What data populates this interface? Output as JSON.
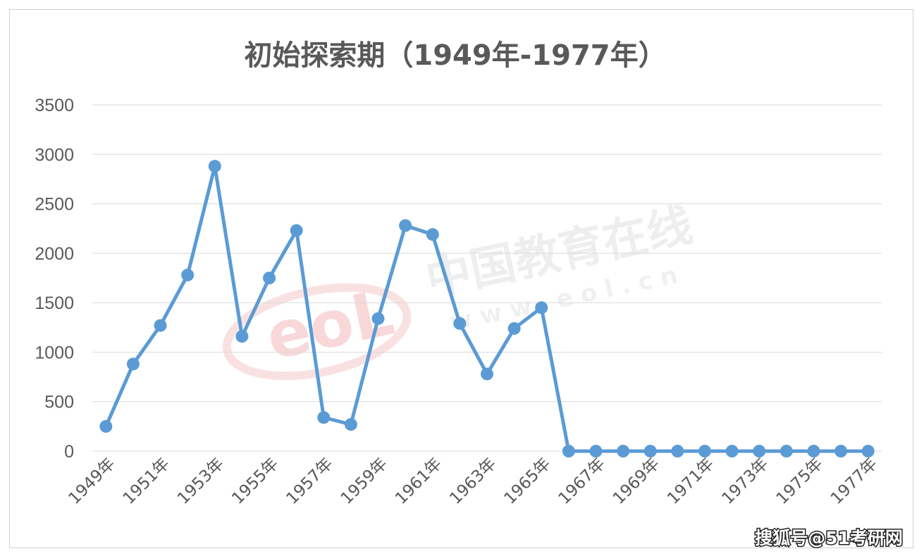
{
  "chart_data": {
    "type": "line",
    "title": "初始探索期（1949年-1977年）",
    "xlabel": "",
    "ylabel": "",
    "ylim": [
      0,
      3500
    ],
    "y_ticks": [
      0,
      500,
      1000,
      1500,
      2000,
      2500,
      3000,
      3500
    ],
    "grid": true,
    "legend": "none",
    "categories": [
      "1949年",
      "1950年",
      "1951年",
      "1952年",
      "1953年",
      "1954年",
      "1955年",
      "1956年",
      "1957年",
      "1958年",
      "1959年",
      "1960年",
      "1961年",
      "1962年",
      "1963年",
      "1964年",
      "1965年",
      "1966年",
      "1967年",
      "1968年",
      "1969年",
      "1970年",
      "1971年",
      "1972年",
      "1973年",
      "1974年",
      "1975年",
      "1976年",
      "1977年"
    ],
    "shown_x_labels": [
      "1949年",
      "1951年",
      "1953年",
      "1955年",
      "1957年",
      "1959年",
      "1961年",
      "1963年",
      "1965年",
      "1967年",
      "1969年",
      "1971年",
      "1973年",
      "1975年",
      "1977年"
    ],
    "series": [
      {
        "values": [
          250,
          880,
          1270,
          1780,
          2880,
          1160,
          1750,
          2230,
          340,
          270,
          1340,
          2280,
          2190,
          1290,
          780,
          1240,
          1450,
          0,
          0,
          0,
          0,
          0,
          0,
          0,
          0,
          0,
          0,
          0,
          0
        ],
        "color": "#5b9bd5"
      }
    ]
  },
  "watermark": {
    "logo_text": "eoL",
    "name": "中国教育在线",
    "url": "w w w . e o l . c n"
  },
  "credit": "搜狐号@51考研网"
}
